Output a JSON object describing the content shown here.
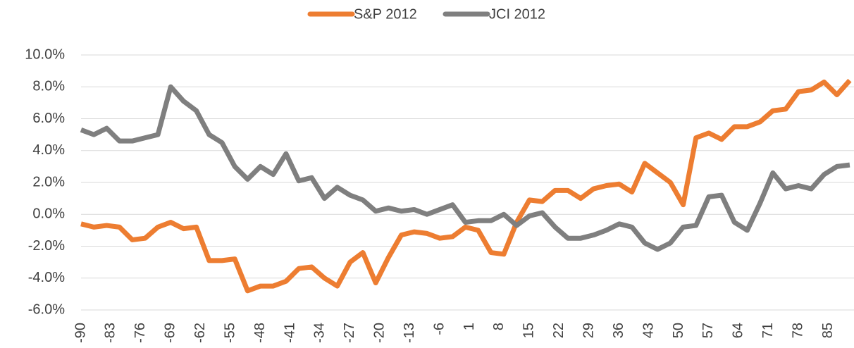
{
  "chart_data": {
    "type": "line",
    "legend": "top",
    "grid": true,
    "x": [
      -90,
      -87,
      -84,
      -81,
      -78,
      -75,
      -72,
      -69,
      -66,
      -63,
      -60,
      -57,
      -54,
      -51,
      -48,
      -45,
      -42,
      -39,
      -36,
      -33,
      -30,
      -27,
      -24,
      -21,
      -18,
      -15,
      -12,
      -9,
      -6,
      -3,
      0,
      3,
      6,
      9,
      12,
      15,
      18,
      21,
      24,
      27,
      30,
      33,
      36,
      39,
      42,
      45,
      48,
      51,
      54,
      57,
      60,
      63,
      66,
      69,
      72,
      75,
      78,
      81,
      84,
      87,
      90
    ],
    "series": [
      {
        "name": "S&P 2012",
        "color": "#ed7d31",
        "values": [
          -0.6,
          -0.8,
          -0.7,
          -0.8,
          -1.6,
          -1.5,
          -0.8,
          -0.5,
          -0.9,
          -0.8,
          -2.9,
          -2.9,
          -2.8,
          -4.8,
          -4.5,
          -4.5,
          -4.2,
          -3.4,
          -3.3,
          -4.0,
          -4.5,
          -3.0,
          -2.4,
          -4.3,
          -2.7,
          -1.3,
          -1.1,
          -1.2,
          -1.5,
          -1.4,
          -0.8,
          -1.0,
          -2.4,
          -2.5,
          -0.5,
          0.9,
          0.8,
          1.5,
          1.5,
          1.0,
          1.6,
          1.8,
          1.9,
          1.4,
          3.2,
          2.6,
          2.0,
          0.6,
          4.8,
          5.1,
          4.7,
          5.5,
          5.5,
          5.8,
          6.5,
          6.6,
          7.7,
          7.8,
          8.3,
          7.5,
          8.4
        ]
      },
      {
        "name": "JCI 2012",
        "color": "#7f7f7f",
        "values": [
          5.3,
          5.0,
          5.4,
          4.6,
          4.6,
          4.8,
          5.0,
          8.0,
          7.1,
          6.5,
          5.0,
          4.5,
          3.0,
          2.2,
          3.0,
          2.5,
          3.8,
          2.1,
          2.3,
          1.0,
          1.7,
          1.2,
          0.9,
          0.2,
          0.4,
          0.2,
          0.3,
          0.0,
          0.3,
          0.6,
          -0.5,
          -0.4,
          -0.4,
          0.0,
          -0.7,
          -0.1,
          0.1,
          -0.8,
          -1.5,
          -1.5,
          -1.3,
          -1.0,
          -0.6,
          -0.8,
          -1.8,
          -2.2,
          -1.8,
          -0.8,
          -0.7,
          1.1,
          1.2,
          -0.5,
          -1.0,
          0.7,
          2.6,
          1.6,
          1.8,
          1.6,
          2.5,
          3.0,
          3.1
        ]
      }
    ],
    "xlim": [
      -90,
      91
    ],
    "xticks": [
      -90,
      -83,
      -76,
      -69,
      -62,
      -55,
      -48,
      -41,
      -34,
      -27,
      -20,
      -13,
      -6,
      1,
      8,
      15,
      22,
      29,
      36,
      43,
      50,
      57,
      64,
      71,
      78,
      85
    ],
    "ylim": [
      -6,
      10
    ],
    "yticks": [
      {
        "value": -6,
        "label": "-6.0%"
      },
      {
        "value": -4,
        "label": "-4.0%"
      },
      {
        "value": -2,
        "label": "-2.0%"
      },
      {
        "value": 0,
        "label": "0.0%"
      },
      {
        "value": 2,
        "label": "2.0%"
      },
      {
        "value": 4,
        "label": "4.0%"
      },
      {
        "value": 6,
        "label": "6.0%"
      },
      {
        "value": 8,
        "label": "8.0%"
      },
      {
        "value": 10,
        "label": "10.0%"
      }
    ]
  }
}
